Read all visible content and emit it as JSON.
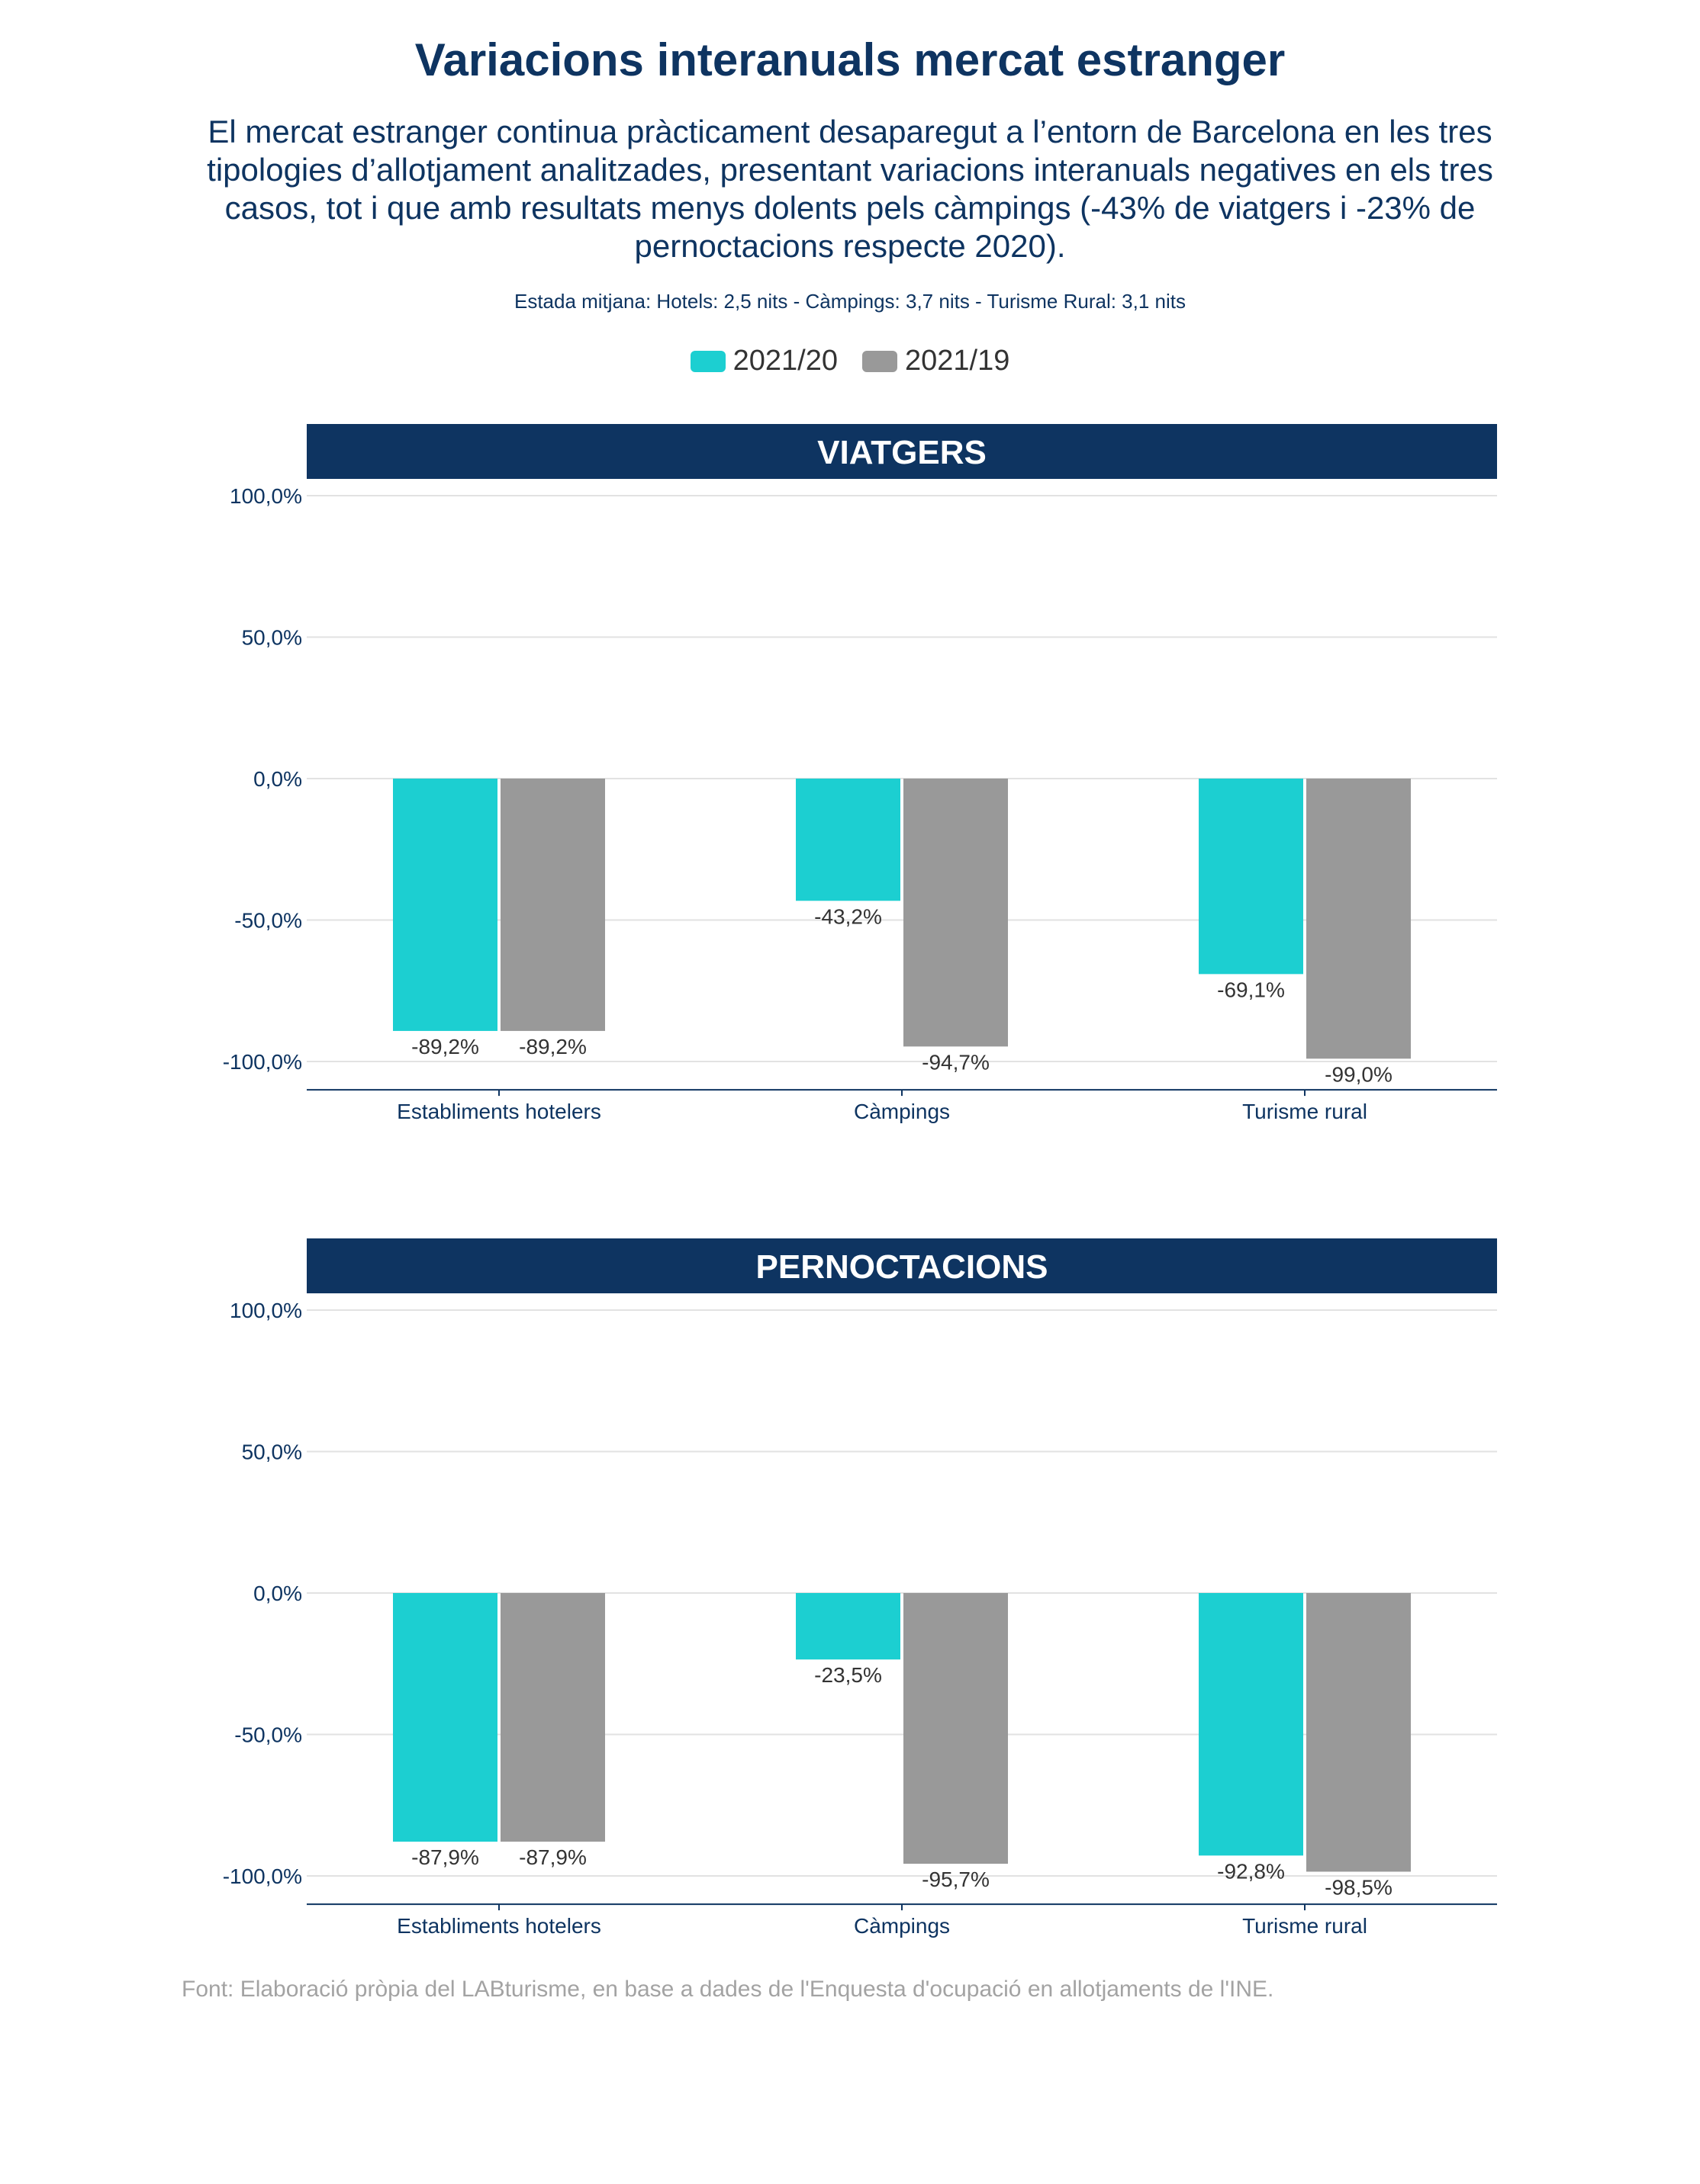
{
  "title": "Variacions interanuals mercat estranger",
  "subtitle": "El mercat estranger continua pràcticament desaparegut a l’entorn de Barcelona en les tres tipologies d’allotjament analitzades, presentant variacions interanuals negatives en els tres casos, tot i que amb resultats menys dolents pels càmpings (-43% de viatgers i -23% de pernoctacions respecte 2020).",
  "note": "Estada mitjana: Hotels: 2,5 nits - Càmpings: 3,7 nits - Turisme Rural: 3,1 nits",
  "legend": [
    {
      "label": "2021/20",
      "color": "#1ccfd1"
    },
    {
      "label": "2021/19",
      "color": "#999999"
    }
  ],
  "source": "Font: Elaboració pròpia del LABturisme, en base a dades de l'Enquesta d'ocupació en allotjaments de l'INE.",
  "chart_data": [
    {
      "type": "bar",
      "title": "VIATGERS",
      "categories": [
        "Establiments hotelers",
        "Càmpings",
        "Turisme rural"
      ],
      "series": [
        {
          "name": "2021/20",
          "values": [
            -89.2,
            -43.2,
            -69.1
          ],
          "labels": [
            "-89,2%",
            "-43,2%",
            "-69,1%"
          ],
          "color": "#1ccfd1"
        },
        {
          "name": "2021/19",
          "values": [
            -89.2,
            -94.7,
            -99.0
          ],
          "labels": [
            "-89,2%",
            "-94,7%",
            "-99,0%"
          ],
          "color": "#999999"
        }
      ],
      "yticks": [
        100,
        50,
        0,
        -50,
        -100
      ],
      "ytick_labels": [
        "100,0%",
        "50,0%",
        "0,0%",
        "-50,0%",
        "-100,0%"
      ],
      "ylim": [
        -110,
        100
      ],
      "grid": true
    },
    {
      "type": "bar",
      "title": "PERNOCTACIONS",
      "categories": [
        "Establiments hotelers",
        "Càmpings",
        "Turisme rural"
      ],
      "series": [
        {
          "name": "2021/20",
          "values": [
            -87.9,
            -23.5,
            -92.8
          ],
          "labels": [
            "-87,9%",
            "-23,5%",
            "-92,8%"
          ],
          "color": "#1ccfd1"
        },
        {
          "name": "2021/19",
          "values": [
            -87.9,
            -95.7,
            -98.5
          ],
          "labels": [
            "-87,9%",
            "-95,7%",
            "-98,5%"
          ],
          "color": "#999999"
        }
      ],
      "yticks": [
        100,
        50,
        0,
        -50,
        -100
      ],
      "ytick_labels": [
        "100,0%",
        "50,0%",
        "0,0%",
        "-50,0%",
        "-100,0%"
      ],
      "ylim": [
        -110,
        100
      ],
      "grid": true
    }
  ]
}
